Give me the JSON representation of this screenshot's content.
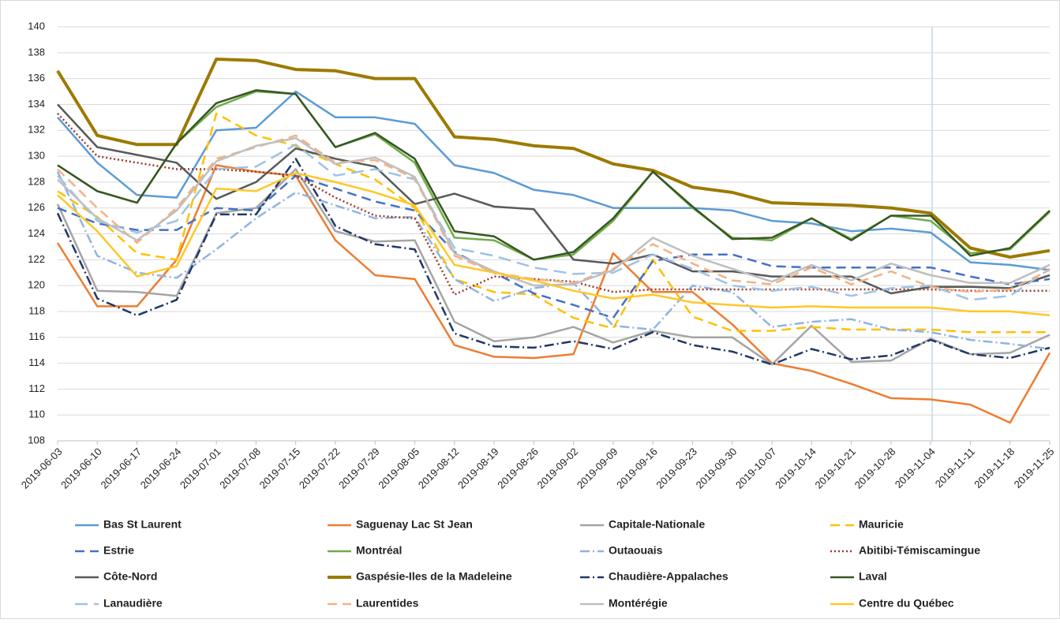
{
  "chart_data": {
    "type": "line",
    "categories": [
      "2019-06-03",
      "2019-06-10",
      "2019-06-17",
      "2019-06-24",
      "2019-07-01",
      "2019-07-08",
      "2019-07-15",
      "2019-07-22",
      "2019-07-29",
      "2019-08-05",
      "2019-08-12",
      "2019-08-19",
      "2019-08-26",
      "2019-09-02",
      "2019-09-09",
      "2019-09-16",
      "2019-09-23",
      "2019-09-30",
      "2019-10-07",
      "2019-10-14",
      "2019-10-21",
      "2019-10-28",
      "2019-11-04",
      "2019-11-11",
      "2019-11-18",
      "2019-11-25"
    ],
    "ylim": [
      108,
      140
    ],
    "yticks": [
      108,
      110,
      112,
      114,
      116,
      118,
      120,
      122,
      124,
      126,
      128,
      130,
      132,
      134,
      136,
      138,
      140
    ],
    "grid": true,
    "series": [
      {
        "name": "Bas St Laurent",
        "color": "#5b9bd5",
        "dash": "solid",
        "values": [
          133,
          129.5,
          127,
          126.8,
          132,
          132.2,
          135,
          133,
          133,
          132.5,
          129.3,
          128.7,
          127.4,
          127,
          126,
          126,
          126,
          125.8,
          125,
          124.8,
          124.2,
          124.4,
          124.1,
          121.8,
          121.6,
          121.2
        ]
      },
      {
        "name": "Saguenay Lac St Jean",
        "color": "#ed7d31",
        "dash": "solid",
        "values": [
          123.3,
          118.4,
          118.4,
          122,
          129.3,
          128.8,
          128.5,
          123.5,
          120.8,
          120.5,
          115.4,
          114.5,
          114.4,
          114.7,
          122.5,
          119.5,
          119.5,
          117,
          114,
          113.4,
          112.4,
          111.3,
          111.2,
          110.8,
          109.4,
          114.8
        ]
      },
      {
        "name": "Capitale-Nationale",
        "color": "#a5a5a5",
        "dash": "solid",
        "values": [
          126.3,
          119.6,
          119.5,
          119.2,
          125.6,
          126,
          129,
          124.2,
          123.4,
          123.5,
          117.2,
          115.7,
          116,
          116.8,
          115.6,
          116.5,
          116,
          116,
          113.9,
          116.9,
          114.1,
          114.2,
          115.9,
          114.7,
          114.8,
          116.2
        ]
      },
      {
        "name": "Mauricie",
        "color": "#ffc000",
        "dash": "dashed",
        "values": [
          127.3,
          125.3,
          122.5,
          122,
          133.3,
          131.6,
          130.8,
          129.4,
          128.2,
          126,
          120.5,
          119.5,
          119.3,
          117.5,
          116.7,
          122,
          117.6,
          116.5,
          116.5,
          116.8,
          116.6,
          116.6,
          116.6,
          116.4,
          116.4,
          116.4
        ]
      },
      {
        "name": "Estrie",
        "color": "#4472c4",
        "dash": "dashed",
        "values": [
          126,
          124.8,
          124.3,
          124.3,
          126,
          125.8,
          128.5,
          127.5,
          126.5,
          125.8,
          122.6,
          121,
          119.4,
          118.5,
          117.5,
          121.9,
          122.4,
          122.4,
          121.5,
          121.4,
          121.4,
          121.4,
          121.4,
          120.7,
          120.1,
          120.5
        ]
      },
      {
        "name": "Montréal",
        "color": "#70ad47",
        "dash": "solid",
        "values": [
          129.3,
          127.3,
          126.4,
          131,
          133.8,
          135,
          134.8,
          130.7,
          131.7,
          129.5,
          123.7,
          123.5,
          122,
          122.4,
          125,
          128.8,
          126,
          123.7,
          123.5,
          125.2,
          123.6,
          125.4,
          125,
          122.5,
          122.8,
          125.7
        ]
      },
      {
        "name": "Outaouais",
        "color": "#8fb4e3",
        "dash": "dashdot",
        "values": [
          128.8,
          122.3,
          121,
          120.6,
          122.8,
          125.2,
          127.2,
          126.2,
          125.2,
          125.3,
          120.5,
          118.8,
          119.8,
          120.2,
          116.9,
          116.6,
          120,
          119.5,
          116.8,
          117.2,
          117.4,
          116.6,
          116.4,
          115.8,
          115.5,
          115.1
        ]
      },
      {
        "name": "Abitibi-Témiscamingue",
        "color": "#9e3a26",
        "dash": "dotted",
        "values": [
          133.3,
          130,
          129.5,
          129,
          129,
          128.8,
          128.5,
          126.8,
          125.4,
          125.2,
          119.3,
          120.7,
          120.5,
          120.3,
          119.5,
          119.7,
          119.7,
          119.7,
          119.7,
          119.7,
          119.7,
          119.7,
          119.7,
          119.6,
          119.6,
          119.6
        ]
      },
      {
        "name": "Côte-Nord",
        "color": "#595959",
        "dash": "solid",
        "values": [
          134,
          130.7,
          130.1,
          129.5,
          126.7,
          128,
          130.6,
          129.8,
          129.2,
          126.3,
          127.1,
          126.1,
          125.9,
          122,
          121.7,
          122.4,
          121.1,
          121.1,
          120.7,
          120.7,
          120.7,
          119.4,
          119.9,
          119.9,
          119.8,
          120.8
        ]
      },
      {
        "name": "Gaspésie-Iles de la Madeleine",
        "color": "#9c7a00",
        "dash": "solid",
        "width": 4,
        "values": [
          136.6,
          131.6,
          130.9,
          130.9,
          137.5,
          137.4,
          136.7,
          136.6,
          136,
          136,
          131.5,
          131.3,
          130.8,
          130.6,
          129.4,
          128.9,
          127.6,
          127.2,
          126.4,
          126.3,
          126.2,
          126,
          125.6,
          122.9,
          122.2,
          122.7
        ]
      },
      {
        "name": "Chaudière-Appalaches",
        "color": "#203864",
        "dash": "dashdot",
        "values": [
          125.6,
          119,
          117.7,
          118.9,
          125.5,
          125.5,
          129.8,
          124.6,
          123.2,
          122.8,
          116.3,
          115.3,
          115.2,
          115.7,
          115.1,
          116.4,
          115.4,
          114.9,
          113.9,
          115.1,
          114.3,
          114.6,
          115.8,
          114.7,
          114.4,
          115.2
        ]
      },
      {
        "name": "Laval",
        "color": "#375623",
        "dash": "solid",
        "values": [
          129.3,
          127.3,
          126.4,
          131,
          134.1,
          135.1,
          134.8,
          130.7,
          131.8,
          129.8,
          124.2,
          123.8,
          122,
          122.6,
          125.2,
          128.8,
          126.1,
          123.6,
          123.7,
          125.2,
          123.5,
          125.4,
          125.4,
          122.3,
          122.9,
          125.8
        ]
      },
      {
        "name": "Lanaudière",
        "color": "#9dc3e6",
        "dash": "long",
        "values": [
          128.5,
          125,
          124.1,
          125,
          129,
          129.2,
          130.9,
          128.5,
          129,
          128.2,
          122.9,
          122.3,
          121.4,
          120.9,
          121,
          122.4,
          121.3,
          120,
          119.6,
          119.9,
          119.2,
          119.8,
          120,
          118.9,
          119.2,
          121.3
        ]
      },
      {
        "name": "Laurentides",
        "color": "#f4b183",
        "dash": "dashed",
        "values": [
          129,
          126,
          123.3,
          126,
          129.8,
          130.7,
          131.6,
          129.5,
          129.7,
          128.3,
          122.3,
          121,
          120.5,
          120.2,
          121.3,
          123.2,
          121.7,
          120.4,
          120.1,
          121.4,
          120.1,
          121.1,
          119.9,
          119.5,
          119.7,
          121.2
        ]
      },
      {
        "name": "Montérégie",
        "color": "#bfbfbf",
        "dash": "solid",
        "values": [
          128.2,
          125.2,
          123.5,
          125.8,
          129.6,
          130.8,
          131.4,
          129.4,
          129.9,
          128.4,
          122.5,
          121.1,
          120,
          120.1,
          121.2,
          123.7,
          122.3,
          121.3,
          120.3,
          121.6,
          120.4,
          121.7,
          120.8,
          120.2,
          120.2,
          121.6
        ]
      },
      {
        "name": "Centre du Québec",
        "color": "#ffc728",
        "dash": "solid",
        "values": [
          127,
          124.2,
          120.7,
          121.5,
          127.5,
          127.3,
          128.7,
          128,
          127.2,
          126.2,
          121.6,
          121,
          120.4,
          119.6,
          119,
          119.3,
          118.7,
          118.5,
          118.3,
          118.4,
          118.3,
          118.3,
          118.3,
          118,
          118,
          117.7
        ]
      }
    ]
  }
}
